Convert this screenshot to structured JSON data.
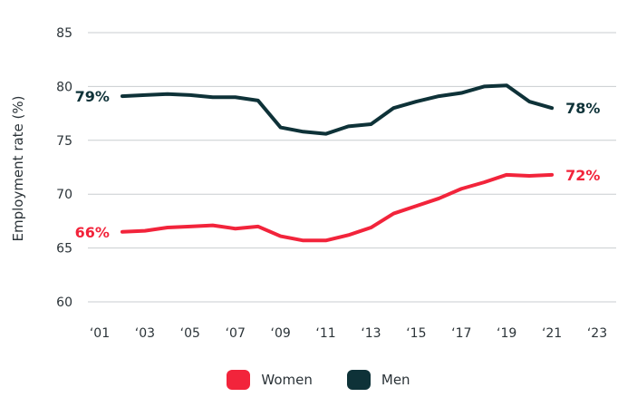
{
  "chart_data": {
    "type": "line",
    "xlabel": "",
    "ylabel": "Employment rate (%)",
    "ylim": [
      60,
      85
    ],
    "xlim": [
      2001,
      2023
    ],
    "grid": "horizontal",
    "legend_placement": "bottom-center",
    "y_ticks": [
      "60",
      "65",
      "70",
      "75",
      "80",
      "85"
    ],
    "x_ticks": [
      "‘01",
      "‘03",
      "‘05",
      "‘07",
      "‘09",
      "‘11",
      "‘13",
      "‘15",
      "‘17",
      "‘19",
      "‘21",
      "‘23"
    ],
    "x": [
      2002,
      2003,
      2004,
      2005,
      2006,
      2007,
      2008,
      2009,
      2010,
      2011,
      2012,
      2013,
      2014,
      2015,
      2016,
      2017,
      2018,
      2019,
      2020,
      2021,
      2022
    ],
    "series": [
      {
        "name": "Women",
        "color": "#f2243b",
        "values": [
          66.5,
          66.6,
          66.9,
          67.0,
          67.1,
          66.8,
          67.0,
          66.1,
          65.7,
          65.7,
          66.2,
          66.9,
          68.2,
          68.9,
          69.6,
          70.5,
          71.1,
          71.8,
          71.7,
          71.8,
          null
        ],
        "start_label": "66%",
        "end_label": "72%"
      },
      {
        "name": "Men",
        "color": "#0e3238",
        "values": [
          79.1,
          79.2,
          79.3,
          79.2,
          79.0,
          79.0,
          78.7,
          76.2,
          75.8,
          75.6,
          76.3,
          76.5,
          78.0,
          78.6,
          79.1,
          79.4,
          80.0,
          80.1,
          78.6,
          78.0,
          null
        ],
        "start_label": "79%",
        "end_label": "78%"
      }
    ]
  }
}
